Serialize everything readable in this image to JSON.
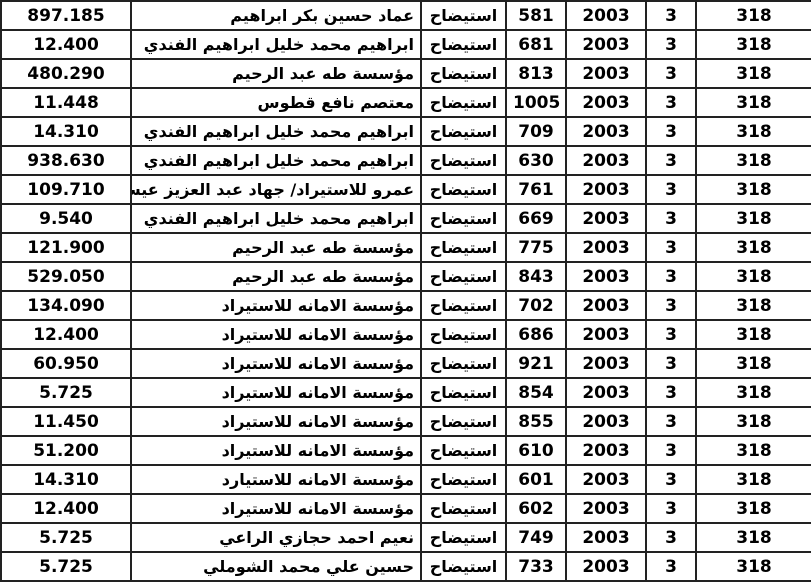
{
  "table": {
    "rows": [
      {
        "amount": "897.185",
        "name": "عماد حسين بكر ابراهيم",
        "type": "استيضاح",
        "number": "581",
        "year": "2003",
        "col3": "3",
        "code": "318"
      },
      {
        "amount": "12.400",
        "name": "ابراهيم محمد خليل ابراهيم الفندي",
        "type": "استيضاح",
        "number": "681",
        "year": "2003",
        "col3": "3",
        "code": "318"
      },
      {
        "amount": "480.290",
        "name": "مؤسسة طه عبد الرحيم",
        "type": "استيضاح",
        "number": "813",
        "year": "2003",
        "col3": "3",
        "code": "318"
      },
      {
        "amount": "11.448",
        "name": "معتصم نافع قطوس",
        "type": "استيضاح",
        "number": "1005",
        "year": "2003",
        "col3": "3",
        "code": "318"
      },
      {
        "amount": "14.310",
        "name": "ابراهيم محمد خليل ابراهيم الفندي",
        "type": "استيضاح",
        "number": "709",
        "year": "2003",
        "col3": "3",
        "code": "318"
      },
      {
        "amount": "938.630",
        "name": "ابراهيم محمد خليل ابراهيم الفندي",
        "type": "استيضاح",
        "number": "630",
        "year": "2003",
        "col3": "3",
        "code": "318"
      },
      {
        "amount": "109.710",
        "name": "عمرو للاستيراد/ جهاد عبد العزيز عيس",
        "type": "استيضاح",
        "number": "761",
        "year": "2003",
        "col3": "3",
        "code": "318"
      },
      {
        "amount": "9.540",
        "name": "ابراهيم محمد خليل ابراهيم الفندي",
        "type": "استيضاح",
        "number": "669",
        "year": "2003",
        "col3": "3",
        "code": "318"
      },
      {
        "amount": "121.900",
        "name": "مؤسسة طه عبد الرحيم",
        "type": "استيضاح",
        "number": "775",
        "year": "2003",
        "col3": "3",
        "code": "318"
      },
      {
        "amount": "529.050",
        "name": "مؤسسة طه عبد الرحيم",
        "type": "استيضاح",
        "number": "843",
        "year": "2003",
        "col3": "3",
        "code": "318"
      },
      {
        "amount": "134.090",
        "name": "مؤسسة الامانه للاستيراد",
        "type": "استيضاح",
        "number": "702",
        "year": "2003",
        "col3": "3",
        "code": "318"
      },
      {
        "amount": "12.400",
        "name": "مؤسسة الامانه للاستيراد",
        "type": "استيضاح",
        "number": "686",
        "year": "2003",
        "col3": "3",
        "code": "318"
      },
      {
        "amount": "60.950",
        "name": "مؤسسة الامانه للاستيراد",
        "type": "استيضاح",
        "number": "921",
        "year": "2003",
        "col3": "3",
        "code": "318"
      },
      {
        "amount": "5.725",
        "name": "مؤسسة الامانه للاستيراد",
        "type": "استيضاح",
        "number": "854",
        "year": "2003",
        "col3": "3",
        "code": "318"
      },
      {
        "amount": "11.450",
        "name": "مؤسسة الامانه للاستيراد",
        "type": "استيضاح",
        "number": "855",
        "year": "2003",
        "col3": "3",
        "code": "318"
      },
      {
        "amount": "51.200",
        "name": "مؤسسة الامانه للاستيراد",
        "type": "استيضاح",
        "number": "610",
        "year": "2003",
        "col3": "3",
        "code": "318"
      },
      {
        "amount": "14.310",
        "name": "مؤسسة الامانه للاستيارد",
        "type": "استيضاح",
        "number": "601",
        "year": "2003",
        "col3": "3",
        "code": "318"
      },
      {
        "amount": "12.400",
        "name": "مؤسسة الامانه للاستيراد",
        "type": "استيضاح",
        "number": "602",
        "year": "2003",
        "col3": "3",
        "code": "318"
      },
      {
        "amount": "5.725",
        "name": "نعيم احمد حجازي الراعي",
        "type": "استيضاح",
        "number": "749",
        "year": "2003",
        "col3": "3",
        "code": "318"
      },
      {
        "amount": "5.725",
        "name": "حسين علي محمد الشوملي",
        "type": "استيضاح",
        "number": "733",
        "year": "2003",
        "col3": "3",
        "code": "318"
      }
    ]
  }
}
